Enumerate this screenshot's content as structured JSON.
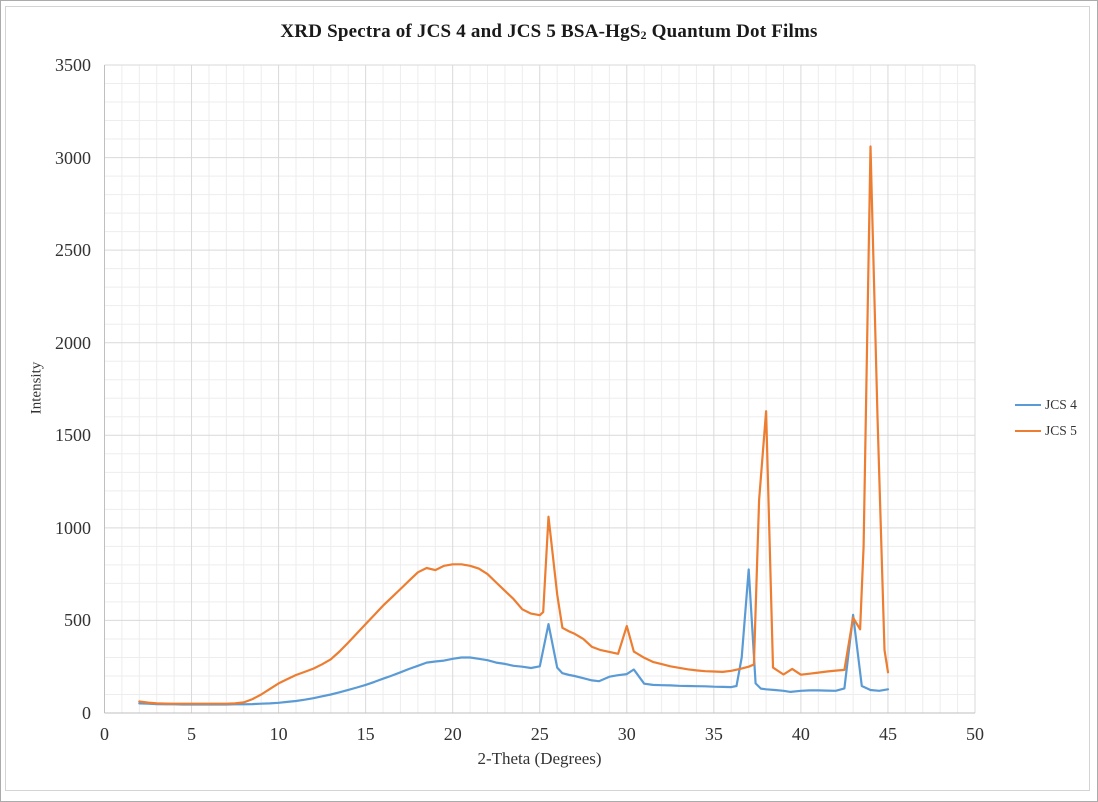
{
  "chart": {
    "title": {
      "pre": "XRD Spectra of JCS 4 and JCS 5 BSA-HgS",
      "sub": "2",
      "post": " Quantum Dot Films"
    },
    "x_axis_label": "2-Theta (Degrees)",
    "y_axis_label": "Intensity"
  },
  "legend": {
    "items": [
      {
        "label": "JCS 4",
        "color": "#5B9BD5"
      },
      {
        "label": "JCS 5",
        "color": "#ED7D31"
      }
    ]
  },
  "colors": {
    "series_blue": "#5B9BD5",
    "series_orange": "#ED7D31",
    "grid_major": "#D9D9D9",
    "grid_minor": "#EDEDED",
    "axis_line": "#BFBFBF",
    "text": "#333333"
  },
  "chart_data": {
    "type": "line",
    "title": "XRD Spectra of JCS 4 and JCS 5 BSA-HgS2 Quantum Dot Films",
    "xlabel": "2-Theta (Degrees)",
    "ylabel": "Intensity",
    "xlim": [
      0,
      50
    ],
    "ylim": [
      0,
      3500
    ],
    "x_ticks": [
      0,
      5,
      10,
      15,
      20,
      25,
      30,
      35,
      40,
      45,
      50
    ],
    "y_ticks": [
      0,
      500,
      1000,
      1500,
      2000,
      2500,
      3000,
      3500
    ],
    "grid": {
      "major": true,
      "minor": true,
      "x_minor_step": 1,
      "y_minor_step": 100
    },
    "legend_position": "right",
    "series": [
      {
        "name": "JCS 4",
        "color": "#5B9BD5",
        "points": [
          [
            2,
            52
          ],
          [
            2.5,
            50
          ],
          [
            3,
            48
          ],
          [
            3.5,
            47
          ],
          [
            4,
            47
          ],
          [
            4.5,
            46
          ],
          [
            5,
            46
          ],
          [
            5.5,
            46
          ],
          [
            6,
            46
          ],
          [
            6.5,
            46
          ],
          [
            7,
            46
          ],
          [
            7.5,
            47
          ],
          [
            8,
            47
          ],
          [
            8.5,
            48
          ],
          [
            9,
            50
          ],
          [
            9.5,
            52
          ],
          [
            10,
            55
          ],
          [
            10.5,
            60
          ],
          [
            11,
            65
          ],
          [
            11.5,
            72
          ],
          [
            12,
            80
          ],
          [
            12.5,
            90
          ],
          [
            13,
            100
          ],
          [
            13.5,
            112
          ],
          [
            14,
            125
          ],
          [
            14.5,
            138
          ],
          [
            15,
            152
          ],
          [
            15.5,
            168
          ],
          [
            16,
            185
          ],
          [
            16.5,
            202
          ],
          [
            17,
            220
          ],
          [
            17.5,
            238
          ],
          [
            18,
            255
          ],
          [
            18.5,
            272
          ],
          [
            19,
            278
          ],
          [
            19.5,
            283
          ],
          [
            20,
            293
          ],
          [
            20.5,
            300
          ],
          [
            21,
            300
          ],
          [
            21.5,
            293
          ],
          [
            22,
            285
          ],
          [
            22.5,
            272
          ],
          [
            23,
            265
          ],
          [
            23.5,
            255
          ],
          [
            24,
            250
          ],
          [
            24.5,
            243
          ],
          [
            25,
            252
          ],
          [
            25.5,
            480
          ],
          [
            26,
            245
          ],
          [
            26.3,
            215
          ],
          [
            26.7,
            205
          ],
          [
            27,
            200
          ],
          [
            27.5,
            188
          ],
          [
            28,
            176
          ],
          [
            28.4,
            172
          ],
          [
            29,
            196
          ],
          [
            29.5,
            204
          ],
          [
            30,
            210
          ],
          [
            30.4,
            235
          ],
          [
            31,
            158
          ],
          [
            31.5,
            152
          ],
          [
            32,
            150
          ],
          [
            32.5,
            149
          ],
          [
            33,
            147
          ],
          [
            33.5,
            146
          ],
          [
            34,
            145
          ],
          [
            34.5,
            144
          ],
          [
            35,
            142
          ],
          [
            35.5,
            141
          ],
          [
            36,
            140
          ],
          [
            36.3,
            146
          ],
          [
            36.6,
            300
          ],
          [
            37,
            775
          ],
          [
            37.4,
            160
          ],
          [
            37.7,
            132
          ],
          [
            38,
            128
          ],
          [
            38.5,
            124
          ],
          [
            39,
            120
          ],
          [
            39.4,
            114
          ],
          [
            40,
            120
          ],
          [
            40.5,
            122
          ],
          [
            41,
            122
          ],
          [
            41.5,
            121
          ],
          [
            42,
            120
          ],
          [
            42.5,
            133
          ],
          [
            43,
            530
          ],
          [
            43.5,
            146
          ],
          [
            44,
            124
          ],
          [
            44.5,
            120
          ],
          [
            45,
            128
          ]
        ]
      },
      {
        "name": "JCS 5",
        "color": "#ED7D31",
        "points": [
          [
            2,
            62
          ],
          [
            2.5,
            56
          ],
          [
            3,
            52
          ],
          [
            3.5,
            51
          ],
          [
            4,
            50
          ],
          [
            4.5,
            50
          ],
          [
            5,
            50
          ],
          [
            5.5,
            50
          ],
          [
            6,
            50
          ],
          [
            6.5,
            50
          ],
          [
            7,
            50
          ],
          [
            7.5,
            52
          ],
          [
            8,
            57
          ],
          [
            8.5,
            75
          ],
          [
            9,
            100
          ],
          [
            9.5,
            130
          ],
          [
            10,
            160
          ],
          [
            10.5,
            183
          ],
          [
            11,
            205
          ],
          [
            11.5,
            222
          ],
          [
            12,
            240
          ],
          [
            12.5,
            263
          ],
          [
            13,
            290
          ],
          [
            13.5,
            332
          ],
          [
            14,
            380
          ],
          [
            14.5,
            430
          ],
          [
            15,
            480
          ],
          [
            15.5,
            530
          ],
          [
            16,
            580
          ],
          [
            16.5,
            625
          ],
          [
            17,
            670
          ],
          [
            17.5,
            715
          ],
          [
            18,
            760
          ],
          [
            18.5,
            783
          ],
          [
            19,
            772
          ],
          [
            19.5,
            795
          ],
          [
            20,
            803
          ],
          [
            20.5,
            803
          ],
          [
            21,
            795
          ],
          [
            21.5,
            780
          ],
          [
            22,
            750
          ],
          [
            22.5,
            705
          ],
          [
            23,
            660
          ],
          [
            23.5,
            615
          ],
          [
            24,
            560
          ],
          [
            24.5,
            537
          ],
          [
            25,
            528
          ],
          [
            25.2,
            545
          ],
          [
            25.5,
            1060
          ],
          [
            26,
            640
          ],
          [
            26.3,
            460
          ],
          [
            26.7,
            440
          ],
          [
            27,
            428
          ],
          [
            27.5,
            400
          ],
          [
            28,
            357
          ],
          [
            28.5,
            340
          ],
          [
            29,
            330
          ],
          [
            29.5,
            320
          ],
          [
            30,
            470
          ],
          [
            30.4,
            332
          ],
          [
            31,
            298
          ],
          [
            31.5,
            276
          ],
          [
            32,
            264
          ],
          [
            32.5,
            252
          ],
          [
            33,
            244
          ],
          [
            33.5,
            236
          ],
          [
            34,
            230
          ],
          [
            34.5,
            226
          ],
          [
            35,
            224
          ],
          [
            35.5,
            222
          ],
          [
            36,
            228
          ],
          [
            36.5,
            238
          ],
          [
            37,
            250
          ],
          [
            37.3,
            262
          ],
          [
            37.6,
            1150
          ],
          [
            38,
            1630
          ],
          [
            38.4,
            245
          ],
          [
            39,
            208
          ],
          [
            39.5,
            238
          ],
          [
            40,
            207
          ],
          [
            40.5,
            212
          ],
          [
            41,
            218
          ],
          [
            41.5,
            224
          ],
          [
            42,
            229
          ],
          [
            42.5,
            233
          ],
          [
            43,
            515
          ],
          [
            43.4,
            452
          ],
          [
            43.6,
            900
          ],
          [
            44,
            3060
          ],
          [
            44.4,
            1600
          ],
          [
            44.8,
            340
          ],
          [
            45,
            220
          ]
        ]
      }
    ]
  }
}
